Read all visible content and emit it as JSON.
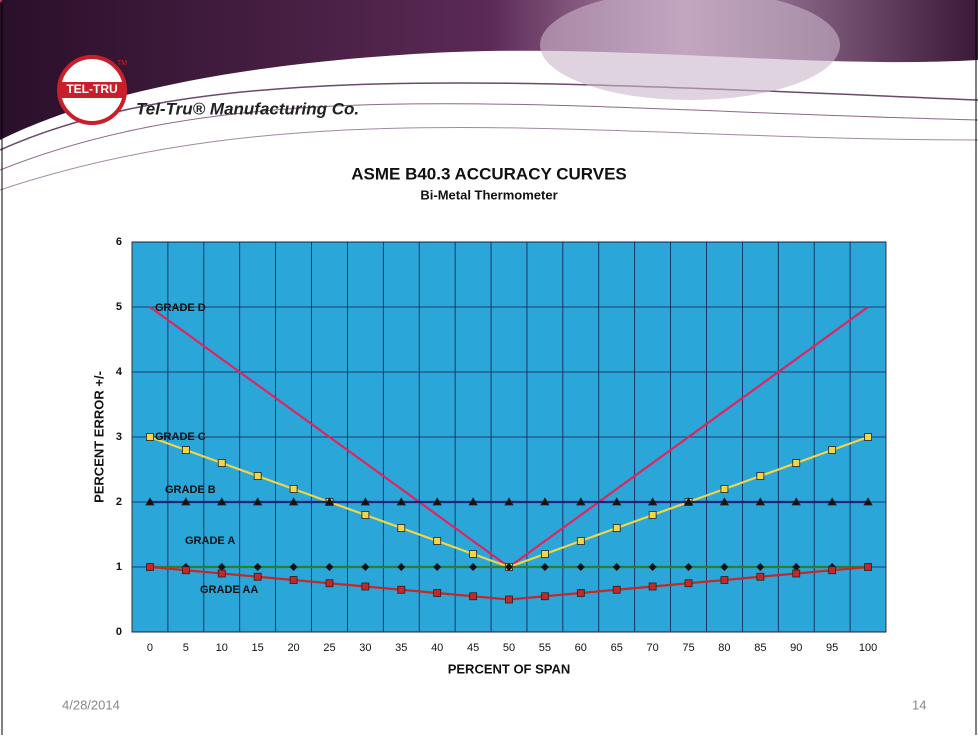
{
  "slide": {
    "logo": "TEL-TRU",
    "trademark": "TM",
    "company": "Tel-Tru® Manufacturing Co.",
    "date": "4/28/2014",
    "page": "14"
  },
  "chart_data": {
    "type": "line",
    "title": "ASME B40.3 ACCURACY CURVES",
    "subtitle": "Bi-Metal Thermometer",
    "x_label": "PERCENT OF SPAN",
    "y_label": "PERCENT ERROR +/-",
    "categories": [
      "0",
      "5",
      "10",
      "15",
      "20",
      "25",
      "30",
      "35",
      "40",
      "45",
      "50",
      "55",
      "60",
      "65",
      "70",
      "75",
      "80",
      "85",
      "90",
      "95",
      "100"
    ],
    "ylim": [
      0,
      6
    ],
    "yticks": [
      0,
      1,
      2,
      3,
      4,
      5,
      6
    ],
    "grid": true,
    "background": "#2aa6d8",
    "series": [
      {
        "name": "GRADE D",
        "color": "#e0245e",
        "marker": "circle",
        "values": [
          5,
          4.6,
          4.2,
          3.8,
          3.4,
          3.0,
          2.6,
          2.2,
          1.8,
          1.4,
          1.0,
          1.4,
          1.8,
          2.2,
          2.6,
          3.0,
          3.4,
          3.8,
          4.2,
          4.6,
          5
        ]
      },
      {
        "name": "GRADE C",
        "color": "#f2d548",
        "marker": "square",
        "values": [
          3,
          2.8,
          2.6,
          2.4,
          2.2,
          2.0,
          1.8,
          1.6,
          1.4,
          1.2,
          1.0,
          1.2,
          1.4,
          1.6,
          1.8,
          2.0,
          2.2,
          2.4,
          2.6,
          2.8,
          3
        ]
      },
      {
        "name": "GRADE B",
        "color": "#1b237a",
        "marker": "triangle",
        "values": [
          2,
          2,
          2,
          2,
          2,
          2,
          2,
          2,
          2,
          2,
          2,
          2,
          2,
          2,
          2,
          2,
          2,
          2,
          2,
          2,
          2
        ]
      },
      {
        "name": "GRADE A",
        "color": "#2f7d32",
        "marker": "diamond",
        "values": [
          1,
          1,
          1,
          1,
          1,
          1,
          1,
          1,
          1,
          1,
          1,
          1,
          1,
          1,
          1,
          1,
          1,
          1,
          1,
          1,
          1
        ]
      },
      {
        "name": "GRADE AA",
        "color": "#c62828",
        "marker": "square",
        "values": [
          1,
          0.95,
          0.9,
          0.85,
          0.8,
          0.75,
          0.7,
          0.65,
          0.6,
          0.55,
          0.5,
          0.55,
          0.6,
          0.65,
          0.7,
          0.75,
          0.8,
          0.85,
          0.9,
          0.95,
          1
        ]
      }
    ]
  }
}
